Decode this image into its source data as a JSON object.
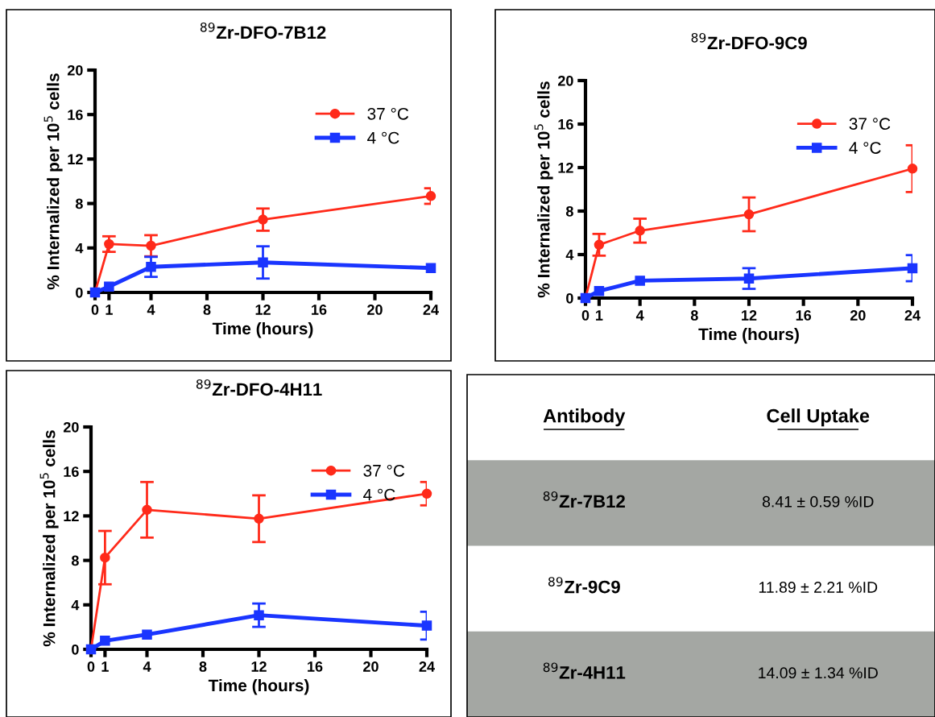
{
  "chart_data": [
    {
      "type": "line",
      "title": "$^{89}$Zr-DFO-7B12",
      "xlabel": "Time (hours)",
      "ylabel": "% Internalized per 10$^{5}$ cells",
      "x": [
        0,
        1,
        4,
        12,
        24
      ],
      "xlim": [
        0,
        24
      ],
      "xticks": [
        0,
        1,
        4,
        8,
        12,
        16,
        20,
        24
      ],
      "ylim": [
        0,
        20
      ],
      "yticks": [
        0,
        4,
        8,
        12,
        16,
        20
      ],
      "grid": false,
      "legend": "top right",
      "series": [
        {
          "name": "37 °C",
          "color": "#ff2a1a",
          "marker": "circle",
          "values": [
            0,
            4.35,
            4.2,
            6.55,
            8.67
          ],
          "errors": [
            null,
            0.7,
            0.95,
            1.0,
            0.7
          ]
        },
        {
          "name": "4 °C",
          "color": "#1a35ff",
          "marker": "square",
          "values": [
            0,
            0.53,
            2.3,
            2.7,
            2.2
          ],
          "errors": [
            null,
            null,
            0.9,
            1.45,
            null
          ]
        }
      ]
    },
    {
      "type": "line",
      "title": "$^{89}$Zr-DFO-9C9",
      "xlabel": "Time (hours)",
      "ylabel": "% Internalized per 10$^{5}$ cells",
      "x": [
        0,
        1,
        4,
        12,
        24
      ],
      "xlim": [
        0,
        24
      ],
      "xticks": [
        0,
        1,
        4,
        8,
        12,
        16,
        20,
        24
      ],
      "ylim": [
        0,
        20
      ],
      "yticks": [
        0,
        4,
        8,
        12,
        16,
        20
      ],
      "grid": false,
      "legend": "top right",
      "series": [
        {
          "name": "37 °C",
          "color": "#ff2a1a",
          "marker": "circle",
          "values": [
            0,
            4.9,
            6.2,
            7.7,
            11.9
          ],
          "errors": [
            null,
            1.0,
            1.1,
            1.55,
            2.15
          ]
        },
        {
          "name": "4 °C",
          "color": "#1a35ff",
          "marker": "square",
          "values": [
            0,
            0.65,
            1.6,
            1.8,
            2.75
          ],
          "errors": [
            null,
            null,
            null,
            0.95,
            1.2
          ]
        }
      ]
    },
    {
      "type": "line",
      "title": "$^{89}$Zr-DFO-4H11",
      "xlabel": "Time (hours)",
      "ylabel": "% Internalized per 10$^{5}$ cells",
      "x": [
        0,
        1,
        4,
        12,
        24
      ],
      "xlim": [
        0,
        24
      ],
      "xticks": [
        0,
        1,
        4,
        8,
        12,
        16,
        20,
        24
      ],
      "ylim": [
        0,
        20
      ],
      "yticks": [
        0,
        4,
        8,
        12,
        16,
        20
      ],
      "grid": false,
      "legend": "top right",
      "series": [
        {
          "name": "37 °C",
          "color": "#ff2a1a",
          "marker": "circle",
          "values": [
            0,
            8.25,
            12.55,
            11.75,
            14.0
          ],
          "errors": [
            null,
            2.4,
            2.5,
            2.1,
            1.05
          ]
        },
        {
          "name": "4 °C",
          "color": "#1a35ff",
          "marker": "square",
          "values": [
            0,
            0.77,
            1.33,
            3.07,
            2.13
          ],
          "errors": [
            null,
            null,
            null,
            1.05,
            1.25
          ]
        }
      ]
    },
    {
      "type": "other",
      "annotations": [
        "Antibody",
        "Cell Uptake",
        "$^{89}$Zr-7B12",
        "8.41 ± 0.59 %ID",
        "$^{89}$Zr-9C9",
        "11.89 ± 2.21 %ID",
        "$^{89}$Zr-4H11",
        "14.09 ± 1.34 %ID"
      ]
    }
  ]
}
